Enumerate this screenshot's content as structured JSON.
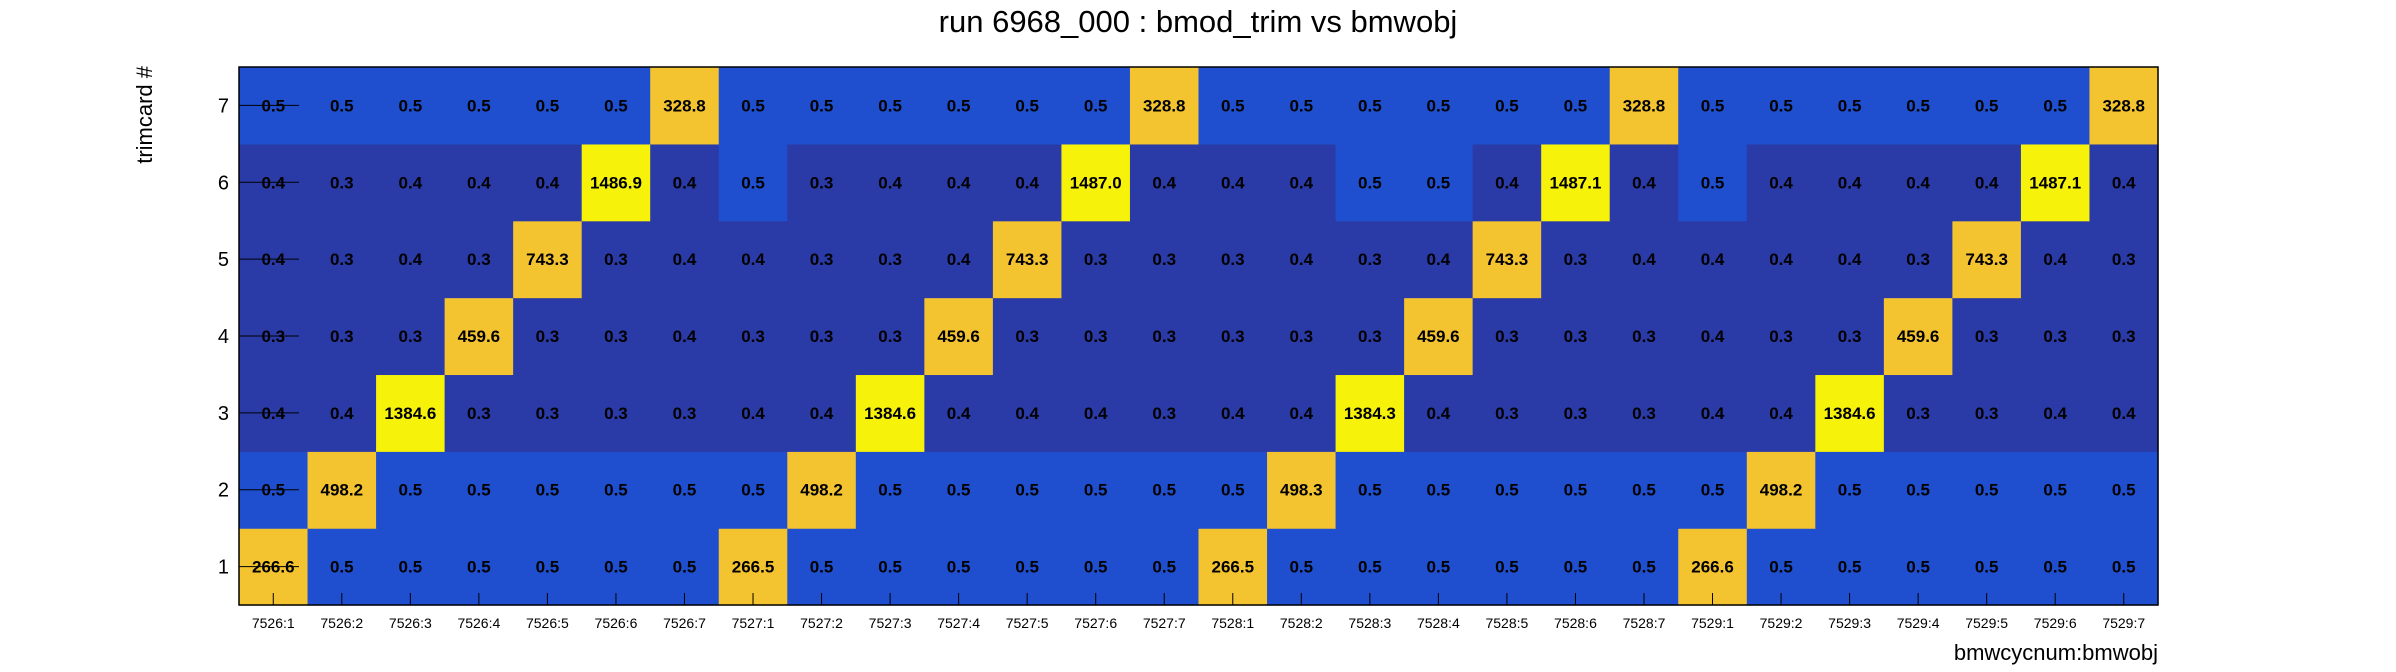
{
  "chart_data": {
    "type": "heatmap",
    "title": "run 6968_000 : bmod_trim vs bmwobj",
    "xlabel": "bmwcycnum:bmwobj",
    "ylabel": "trimcard #",
    "x_categories": [
      "7526:1",
      "7526:2",
      "7526:3",
      "7526:4",
      "7526:5",
      "7526:6",
      "7526:7",
      "7527:1",
      "7527:2",
      "7527:3",
      "7527:4",
      "7527:5",
      "7527:6",
      "7527:7",
      "7528:1",
      "7528:2",
      "7528:3",
      "7528:4",
      "7528:5",
      "7528:6",
      "7528:7",
      "7529:1",
      "7529:2",
      "7529:3",
      "7529:4",
      "7529:5",
      "7529:6",
      "7529:7"
    ],
    "y_categories": [
      "1",
      "2",
      "3",
      "4",
      "5",
      "6",
      "7"
    ],
    "values": [
      [
        "266.6",
        "0.5",
        "0.5",
        "0.5",
        "0.5",
        "0.5",
        "0.5",
        "266.5",
        "0.5",
        "0.5",
        "0.5",
        "0.5",
        "0.5",
        "0.5",
        "266.5",
        "0.5",
        "0.5",
        "0.5",
        "0.5",
        "0.5",
        "0.5",
        "266.6",
        "0.5",
        "0.5",
        "0.5",
        "0.5",
        "0.5",
        "0.5"
      ],
      [
        "0.5",
        "498.2",
        "0.5",
        "0.5",
        "0.5",
        "0.5",
        "0.5",
        "0.5",
        "498.2",
        "0.5",
        "0.5",
        "0.5",
        "0.5",
        "0.5",
        "0.5",
        "498.3",
        "0.5",
        "0.5",
        "0.5",
        "0.5",
        "0.5",
        "0.5",
        "498.2",
        "0.5",
        "0.5",
        "0.5",
        "0.5",
        "0.5"
      ],
      [
        "0.4",
        "0.4",
        "1384.6",
        "0.3",
        "0.3",
        "0.3",
        "0.3",
        "0.4",
        "0.4",
        "1384.6",
        "0.4",
        "0.4",
        "0.4",
        "0.3",
        "0.4",
        "0.4",
        "1384.3",
        "0.4",
        "0.3",
        "0.3",
        "0.3",
        "0.4",
        "0.4",
        "1384.6",
        "0.3",
        "0.3",
        "0.4",
        "0.4"
      ],
      [
        "0.3",
        "0.3",
        "0.3",
        "459.6",
        "0.3",
        "0.3",
        "0.4",
        "0.3",
        "0.3",
        "0.3",
        "459.6",
        "0.3",
        "0.3",
        "0.3",
        "0.3",
        "0.3",
        "0.3",
        "459.6",
        "0.3",
        "0.3",
        "0.3",
        "0.4",
        "0.3",
        "0.3",
        "459.6",
        "0.3",
        "0.3",
        "0.3"
      ],
      [
        "0.4",
        "0.3",
        "0.4",
        "0.3",
        "743.3",
        "0.3",
        "0.4",
        "0.4",
        "0.3",
        "0.3",
        "0.4",
        "743.3",
        "0.3",
        "0.3",
        "0.3",
        "0.4",
        "0.3",
        "0.4",
        "743.3",
        "0.3",
        "0.4",
        "0.4",
        "0.4",
        "0.4",
        "0.3",
        "743.3",
        "0.4",
        "0.3"
      ],
      [
        "0.4",
        "0.3",
        "0.4",
        "0.4",
        "0.4",
        "1486.9",
        "0.4",
        "0.5",
        "0.3",
        "0.4",
        "0.4",
        "0.4",
        "1487.0",
        "0.4",
        "0.4",
        "0.4",
        "0.5",
        "0.5",
        "0.4",
        "1487.1",
        "0.4",
        "0.5",
        "0.4",
        "0.4",
        "0.4",
        "0.4",
        "1487.1",
        "0.4"
      ],
      [
        "0.5",
        "0.5",
        "0.5",
        "0.5",
        "0.5",
        "0.5",
        "328.8",
        "0.5",
        "0.5",
        "0.5",
        "0.5",
        "0.5",
        "0.5",
        "328.8",
        "0.5",
        "0.5",
        "0.5",
        "0.5",
        "0.5",
        "0.5",
        "328.8",
        "0.5",
        "0.5",
        "0.5",
        "0.5",
        "0.5",
        "0.5",
        "328.8"
      ]
    ],
    "grid": false,
    "legend": "none",
    "colors": {
      "dark_blue": "#2a3aa6",
      "blue": "#1f4fce",
      "yellow": "#f7f20a",
      "gold": "#f4c430"
    }
  }
}
